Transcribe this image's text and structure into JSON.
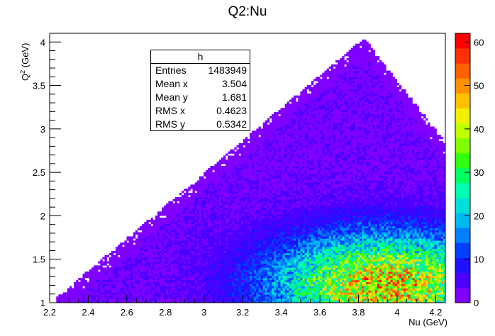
{
  "chart_data": {
    "type": "heatmap",
    "title": "Q2:Nu",
    "xlabel": "Nu (GeV)",
    "ylabel_base": "Q",
    "ylabel_sup": "2",
    "ylabel_unit": " (GeV)",
    "xlim": [
      2.2,
      4.25
    ],
    "ylim": [
      1.0,
      4.1
    ],
    "zlim": [
      0,
      62
    ],
    "x_ticks": [
      "2.2",
      "2.4",
      "2.6",
      "2.8",
      "3",
      "3.2",
      "3.4",
      "3.6",
      "3.8",
      "4",
      "4.2"
    ],
    "y_ticks": [
      "1",
      "1.5",
      "2",
      "2.5",
      "3",
      "3.5",
      "4"
    ],
    "z_ticks": [
      "0",
      "10",
      "20",
      "30",
      "40",
      "50",
      "60"
    ],
    "palette": [
      "#7f00ff",
      "#4b00ff",
      "#1f10ff",
      "#0040ff",
      "#0080ff",
      "#00b8f0",
      "#00e0d8",
      "#00ffb0",
      "#00ff60",
      "#30ff10",
      "#80ff00",
      "#c0ff00",
      "#f0f000",
      "#ffc000",
      "#ff9000",
      "#ff6000",
      "#ff3000",
      "#ff0000"
    ],
    "region": {
      "lower_edge_left": [
        2.23,
        1.05
      ],
      "apex": [
        3.83,
        4.05
      ],
      "right_edge_top": [
        4.25,
        2.85
      ],
      "x_right": 4.25,
      "y_bottom": 1.0
    },
    "density_peak": [
      3.95,
      1.2
    ],
    "max_bin_content": 45
  },
  "stats": {
    "name": "h",
    "rows": [
      {
        "label": "Entries",
        "value": "1483949"
      },
      {
        "label": "Mean x",
        "value": "3.504"
      },
      {
        "label": "Mean y",
        "value": "1.681"
      },
      {
        "label": "RMS x",
        "value": "0.4623"
      },
      {
        "label": "RMS y",
        "value": "0.5342"
      }
    ]
  }
}
